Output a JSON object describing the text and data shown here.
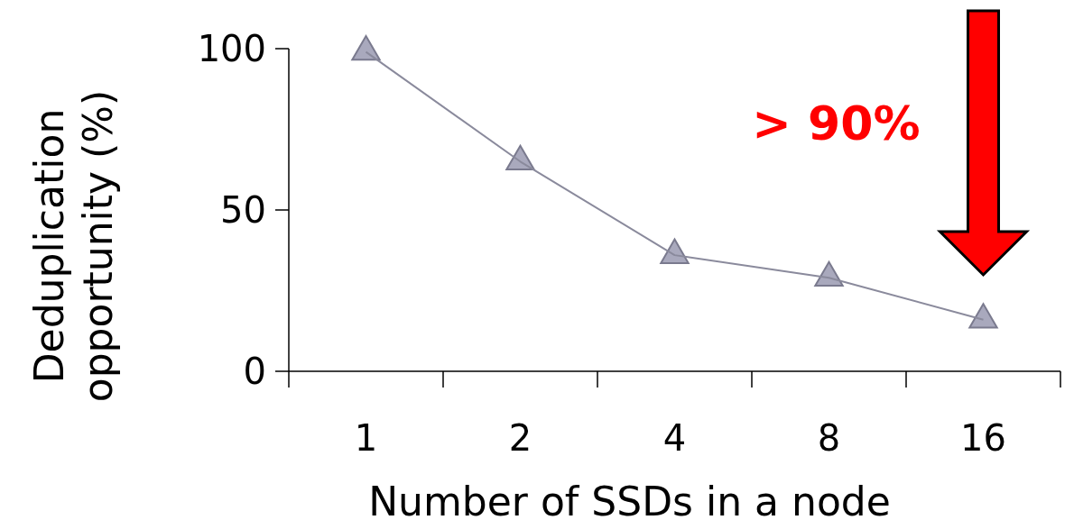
{
  "chart_data": {
    "type": "line",
    "categories": [
      "1",
      "2",
      "4",
      "8",
      "16"
    ],
    "series": [
      {
        "color": "#a9a9bd",
        "values": [
          99,
          65,
          36,
          29,
          16
        ]
      }
    ],
    "ylim": [
      0,
      100
    ],
    "yticks": [
      0,
      50,
      100
    ],
    "xlabel": "Number of SSDs in a node",
    "ylabel": "Deduplication opportunity (%)",
    "marker": "triangle",
    "grid": false,
    "annotations": [
      "> 90%"
    ]
  }
}
